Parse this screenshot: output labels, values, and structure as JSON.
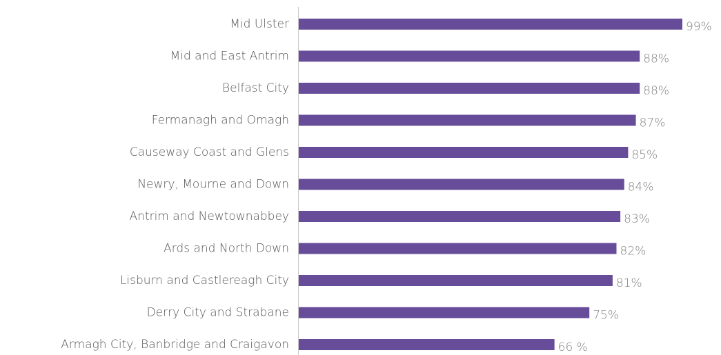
{
  "chart_data": {
    "type": "hbar",
    "categories": [
      "Mid Ulster",
      "Mid and East Antrim",
      "Belfast City",
      "Fermanagh and Omagh",
      "Causeway Coast and Glens",
      "Newry, Mourne and Down",
      "Antrim and Newtownabbey",
      "Ards and North Down",
      "Lisburn and Castlereagh City",
      "Derry City and Strabane",
      "Armagh City, Banbridge and Craigavon"
    ],
    "values": [
      99,
      88,
      88,
      87,
      85,
      84,
      83,
      82,
      81,
      75,
      66
    ],
    "value_labels": [
      "99%",
      "88%",
      "88%",
      "87%",
      "85%",
      "84%",
      "83%",
      "82%",
      "81%",
      "75%",
      "66 %"
    ],
    "color": "#674c9a",
    "xlim": [
      0,
      100
    ]
  }
}
